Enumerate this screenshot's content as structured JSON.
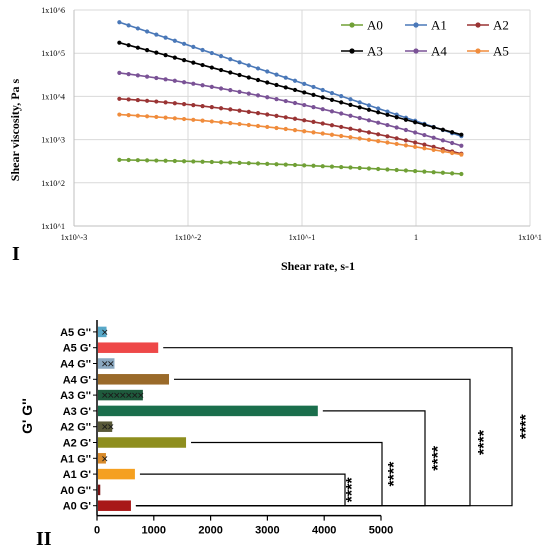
{
  "panel_labels": {
    "top": "I",
    "bottom": "II"
  },
  "colors": {
    "A0": "#70a036",
    "A1": "#4a78b8",
    "A2": "#9a3434",
    "A3": "#000000",
    "A4": "#7a5296",
    "A5": "#f08c3c",
    "grid": "#d9d9d9",
    "axis": "#000000"
  },
  "chart_data": [
    {
      "type": "line",
      "xlabel": "Shear rate, s-1",
      "ylabel": "Shear viscosity, Pa s",
      "xscale": "log",
      "yscale": "log",
      "xlim": [
        0.001,
        10
      ],
      "ylim": [
        10,
        1000000
      ],
      "x_ticks": [
        {
          "v": 0.001,
          "label": "1x10^-3"
        },
        {
          "v": 0.01,
          "label": "1x10^-2"
        },
        {
          "v": 0.1,
          "label": "1x10^-1"
        },
        {
          "v": 1,
          "label": "1"
        },
        {
          "v": 10,
          "label": "1x10^1"
        }
      ],
      "y_ticks": [
        {
          "v": 10,
          "label": "1x10^1"
        },
        {
          "v": 100,
          "label": "1x10^2"
        },
        {
          "v": 1000,
          "label": "1x10^3"
        },
        {
          "v": 10000,
          "label": "1x10^4"
        },
        {
          "v": 100000,
          "label": "1x10^5"
        },
        {
          "v": 1000000,
          "label": "1x10^6"
        }
      ],
      "grid": true,
      "legend_position": "top-right",
      "x_range": [
        0.0025,
        2.5
      ],
      "points_per_series": 38,
      "series": [
        {
          "name": "A0",
          "start": 340,
          "end": 160,
          "curve": 0.6
        },
        {
          "name": "A1",
          "start": 520000,
          "end": 1200,
          "curve": 0.0
        },
        {
          "name": "A2",
          "start": 8800,
          "end": 470,
          "curve": 0.6
        },
        {
          "name": "A3",
          "start": 175000,
          "end": 1300,
          "curve": 0.0
        },
        {
          "name": "A4",
          "start": 35000,
          "end": 720,
          "curve": 0.4
        },
        {
          "name": "A5",
          "start": 3800,
          "end": 450,
          "curve": 0.5
        }
      ]
    },
    {
      "type": "bar",
      "orientation": "horizontal",
      "ylabel": "G' G''",
      "xlim": [
        0,
        5000
      ],
      "x_ticks": [
        0,
        1000,
        2000,
        3000,
        4000,
        5000
      ],
      "categories": [
        "A5 G''",
        "A5 G'",
        "A4 G''",
        "A4 G'",
        "A3 G''",
        "A3 G'",
        "A2 G''",
        "A2 G'",
        "A1 G''",
        "A1 G'",
        "A0 G''",
        "A0 G'"
      ],
      "values": [
        150,
        1060,
        290,
        1250,
        790,
        3870,
        250,
        1550,
        140,
        650,
        40,
        580
      ],
      "bar_colors": [
        "#58a8c8",
        "#ee4848",
        "#8aa8c0",
        "#9a6a2a",
        "#1e5a3c",
        "#1a6e4c",
        "#585838",
        "#8e8e1e",
        "#d88a2a",
        "#f5a020",
        "#7a1414",
        "#a81818"
      ],
      "hatched": [
        true,
        false,
        true,
        false,
        true,
        false,
        true,
        false,
        true,
        false,
        true,
        false
      ],
      "significance": [
        {
          "from": "A0 G'",
          "to": "A1 G'",
          "label": "****"
        },
        {
          "from": "A0 G'",
          "to": "A2 G'",
          "label": "****"
        },
        {
          "from": "A0 G'",
          "to": "A3 G'",
          "label": "****"
        },
        {
          "from": "A0 G'",
          "to": "A4 G'",
          "label": "****"
        },
        {
          "from": "A0 G'",
          "to": "A5 G'",
          "label": "****"
        }
      ]
    }
  ]
}
